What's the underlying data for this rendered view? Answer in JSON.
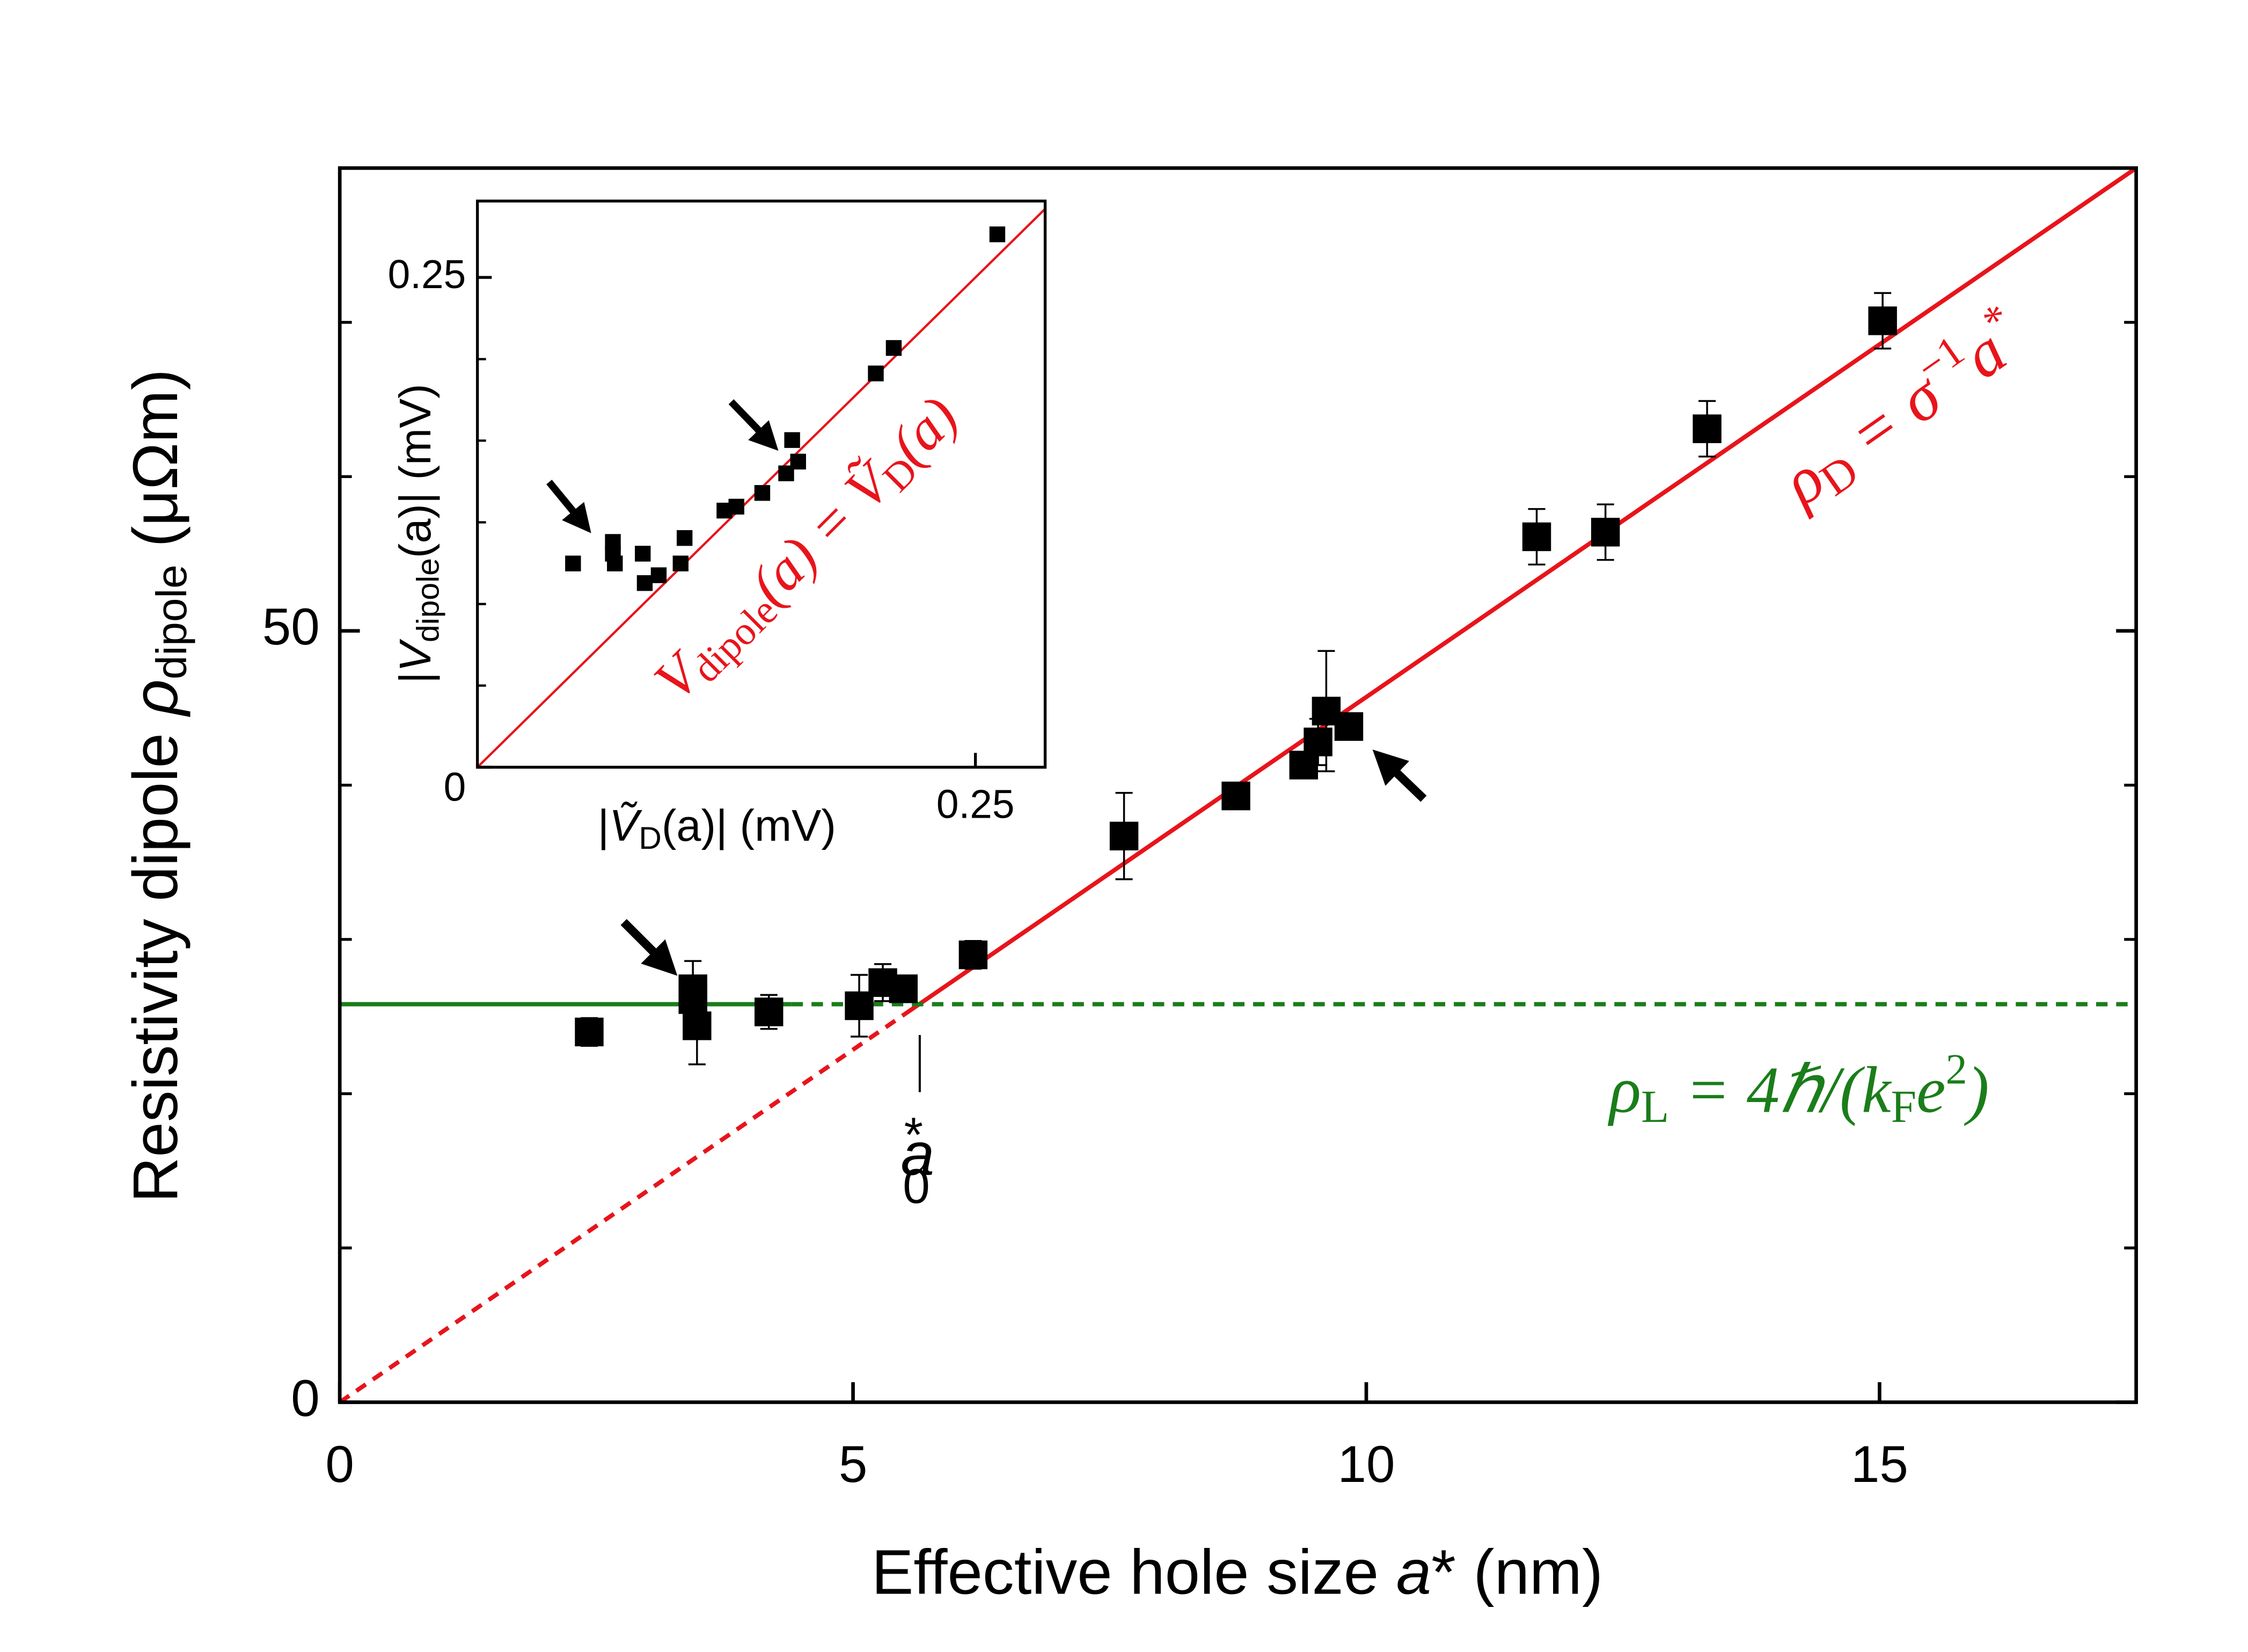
{
  "chart_data": [
    {
      "type": "scatter",
      "xlabel": {
        "pre": "Effective hole size ",
        "var": "a",
        "post": "* (nm)"
      },
      "ylabel": {
        "pre": "Resistivity dipole ",
        "var": "ρ",
        "sub": "dipole",
        "post": " (μΩm)"
      },
      "xlim": [
        0,
        17.5
      ],
      "ylim": [
        0,
        80
      ],
      "xticks": [
        0,
        5,
        10,
        15
      ],
      "yticks": [
        0,
        50
      ],
      "y_minor_ticks": [
        10,
        20,
        30,
        40,
        60,
        70
      ],
      "series": [
        {
          "color": "#000000",
          "x": [
            2.43,
            3.44,
            3.44,
            3.48,
            4.18,
            5.06,
            5.29,
            5.49,
            6.17,
            7.64,
            8.73,
            9.39,
            9.53,
            9.61,
            9.83,
            11.66,
            12.33,
            13.32,
            15.03
          ],
          "values": [
            24.0,
            26.8,
            26.1,
            24.4,
            25.3,
            25.7,
            27.2,
            26.8,
            29.0,
            36.7,
            39.3,
            41.3,
            42.8,
            44.8,
            43.8,
            56.1,
            56.4,
            63.1,
            70.1
          ],
          "errors": [
            0.9,
            1.8,
            1.0,
            2.5,
            1.1,
            2.0,
            1.2,
            0.8,
            0.9,
            2.8,
            0.7,
            0.8,
            1.5,
            3.9,
            0.7,
            1.8,
            1.8,
            1.8,
            1.8
          ]
        }
      ],
      "lines": [
        {
          "color": "#e8141b",
          "dashed": true,
          "x": [
            0,
            5.5
          ],
          "y": [
            0,
            25.14
          ]
        },
        {
          "color": "#e8141b",
          "dashed": false,
          "x": [
            5.5,
            17.5
          ],
          "y": [
            25.14,
            80
          ]
        },
        {
          "color": "#1a7d1a",
          "dashed": false,
          "x": [
            0,
            4.4
          ],
          "y": [
            25.8,
            25.8
          ]
        },
        {
          "color": "#1a7d1a",
          "dashed": true,
          "x": [
            4.4,
            17.5
          ],
          "y": [
            25.8,
            25.8
          ]
        }
      ],
      "marker": {
        "x": 5.65,
        "y": [
          20.1,
          23.8
        ],
        "var": "a",
        "sub": "0",
        "sup": "*"
      },
      "eq_red": {
        "a": "ρ",
        "b": "D",
        "c": " = σ",
        "d": "−1",
        "e": "a",
        "f": "*"
      },
      "eq_green": {
        "a": "ρ",
        "b": "L",
        "c": " = 4ℏ/(k",
        "d": "F",
        "e": "e",
        "f": "2",
        "g": ")"
      }
    },
    {
      "type": "scatter",
      "xlabel": {
        "pre": "|",
        "var": "Ṽ",
        "sub": "D",
        "post": "(a)| (mV)"
      },
      "ylabel": {
        "pre": "|",
        "var": "V",
        "sub": "dipole",
        "post": "(a)| (mV)"
      },
      "xlim": [
        0,
        0.285
      ],
      "ylim": [
        0,
        0.289
      ],
      "xticks": [
        0.25
      ],
      "yticks": [
        0,
        0.25
      ],
      "y_minor_ticks": [
        0.0417,
        0.0833,
        0.125,
        0.1667,
        0.2083
      ],
      "series": [
        {
          "color": "#000000",
          "x": [
            0.048,
            0.068,
            0.068,
            0.069,
            0.083,
            0.084,
            0.091,
            0.102,
            0.104,
            0.124,
            0.13,
            0.143,
            0.155,
            0.158,
            0.161,
            0.2,
            0.209,
            0.261
          ],
          "values": [
            0.104,
            0.115,
            0.109,
            0.104,
            0.109,
            0.094,
            0.098,
            0.104,
            0.117,
            0.131,
            0.133,
            0.14,
            0.15,
            0.167,
            0.156,
            0.201,
            0.214,
            0.272
          ]
        }
      ],
      "lines": [
        {
          "color": "#e8141b",
          "dashed": false,
          "x": [
            0,
            0.285
          ],
          "y": [
            0,
            0.285
          ]
        }
      ],
      "eq": {
        "a": "V",
        "b": "dipole",
        "c": "(a) = Ṽ",
        "d": "D",
        "e": "(a)"
      }
    }
  ]
}
